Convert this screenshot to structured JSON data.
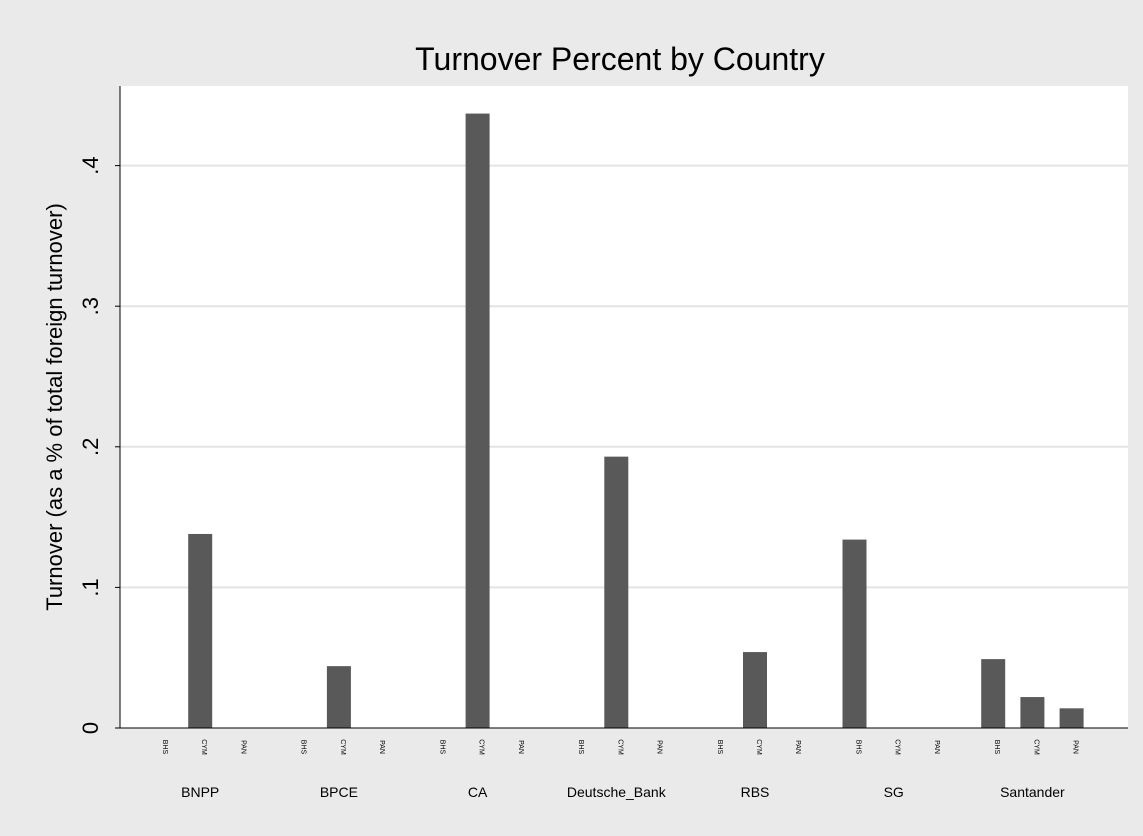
{
  "chart_data": {
    "type": "bar",
    "title": "Turnover Percent by Country",
    "xlabel": "",
    "ylabel": "Turnover (as a %  of total foreign turnover)",
    "ylim": [
      0,
      0.45
    ],
    "yticks": [
      {
        "value": 0,
        "label": "0"
      },
      {
        "value": 0.1,
        "label": ".1"
      },
      {
        "value": 0.2,
        "label": ".2"
      },
      {
        "value": 0.3,
        "label": ".3"
      },
      {
        "value": 0.4,
        "label": ".4"
      }
    ],
    "grid": true,
    "bar_color": "#595959",
    "groups": [
      {
        "name": "BNPP",
        "categories": [
          "BHS",
          "CYM",
          "PAN"
        ],
        "values": [
          0,
          0.138,
          0
        ]
      },
      {
        "name": "BPCE",
        "categories": [
          "BHS",
          "CYM",
          "PAN"
        ],
        "values": [
          0,
          0.044,
          0
        ]
      },
      {
        "name": "CA",
        "categories": [
          "BHS",
          "CYM",
          "PAN"
        ],
        "values": [
          0,
          0.437,
          0
        ]
      },
      {
        "name": "Deutsche_Bank",
        "categories": [
          "BHS",
          "CYM",
          "PAN"
        ],
        "values": [
          0,
          0.193,
          0
        ]
      },
      {
        "name": "RBS",
        "categories": [
          "BHS",
          "CYM",
          "PAN"
        ],
        "values": [
          0,
          0.054,
          0
        ]
      },
      {
        "name": "SG",
        "categories": [
          "BHS",
          "CYM",
          "PAN"
        ],
        "values": [
          0.134,
          0,
          0
        ]
      },
      {
        "name": "Santander",
        "categories": [
          "BHS",
          "CYM",
          "PAN"
        ],
        "values": [
          0.049,
          0.022,
          0.014
        ]
      }
    ]
  }
}
